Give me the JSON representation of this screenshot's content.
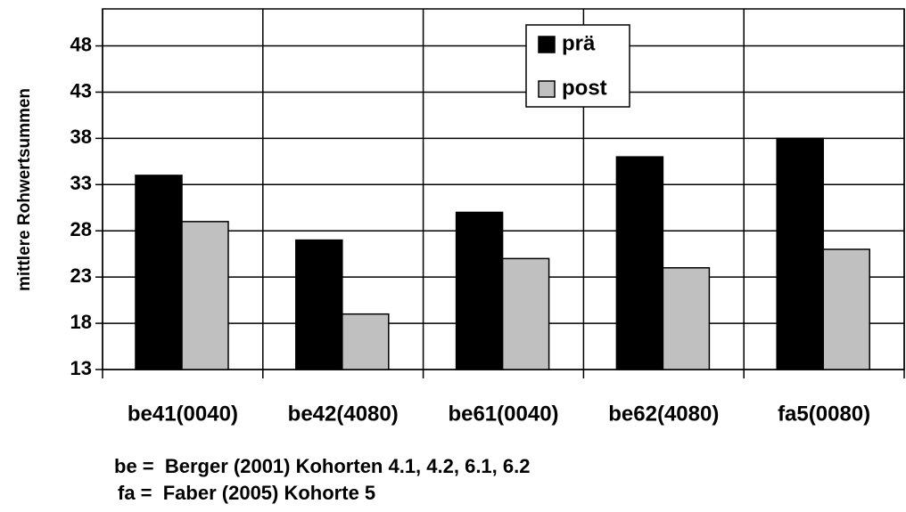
{
  "chart_data": {
    "type": "bar",
    "y_label": "mittlere Rohwertsummen",
    "categories": [
      "be41(0040)",
      "be42(4080)",
      "be61(0040)",
      "be62(4080)",
      "fa5(0080)"
    ],
    "series": [
      {
        "name": "prä",
        "color": "#000000",
        "values": [
          34,
          27,
          30,
          36,
          38
        ]
      },
      {
        "name": "post",
        "color": "#c0c0c0",
        "values": [
          29,
          19,
          25,
          24,
          26
        ]
      }
    ],
    "ylim": [
      13,
      52
    ],
    "yticks": [
      13,
      18,
      23,
      28,
      33,
      38,
      43,
      48
    ],
    "grid": true,
    "legend": "top",
    "annotations": [
      "be =  Berger (2001) Kohorten 4.1, 4.2, 6.1, 6.2",
      "fa =  Faber (2005) Kohorte 5"
    ]
  }
}
